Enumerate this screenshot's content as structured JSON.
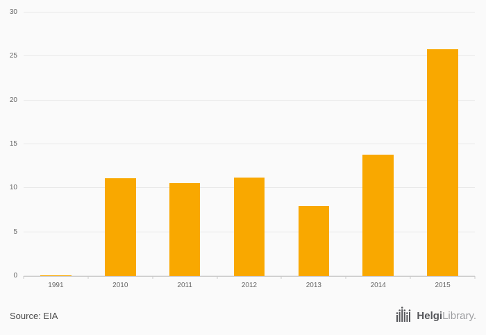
{
  "chart_data": {
    "type": "bar",
    "categories": [
      "1991",
      "2010",
      "2011",
      "2012",
      "2013",
      "2014",
      "2015"
    ],
    "values": [
      0.1,
      11.1,
      10.6,
      11.2,
      8.0,
      13.8,
      25.8
    ],
    "title": "",
    "xlabel": "",
    "ylabel": "",
    "ylim": [
      0,
      30
    ],
    "yticks": [
      0,
      5,
      10,
      15,
      20,
      25,
      30
    ],
    "bar_color": "#F9A800",
    "grid": true,
    "legend": false,
    "background": "#fafafa"
  },
  "footer": {
    "source": "Source: EIA",
    "logo_bold": "Helgi",
    "logo_light": "Library."
  }
}
